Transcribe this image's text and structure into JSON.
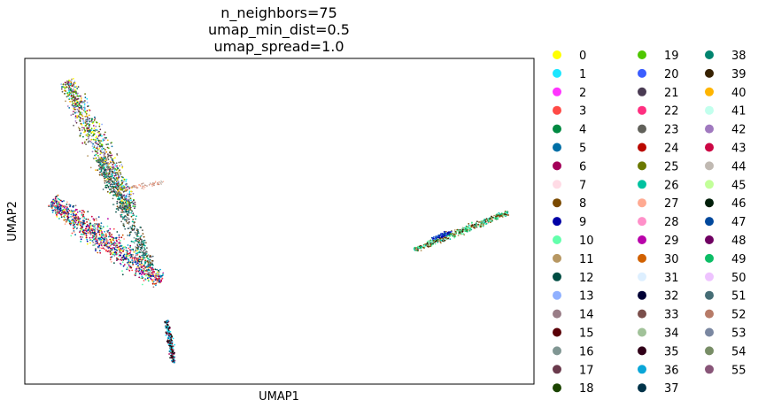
{
  "chart_data": {
    "type": "scatter",
    "title": [
      "n_neighbors=75",
      "umap_min_dist=0.5",
      "umap_spread=1.0"
    ],
    "xlabel": "UMAP1",
    "ylabel": "UMAP2",
    "xticks": [],
    "yticks": [],
    "grid": false,
    "legend": {
      "placement": "right-outside",
      "columns": 3,
      "entries": [
        {
          "label": "0",
          "color": "#ffff00"
        },
        {
          "label": "1",
          "color": "#1ce6ff"
        },
        {
          "label": "2",
          "color": "#ff34ff"
        },
        {
          "label": "3",
          "color": "#ff4a46"
        },
        {
          "label": "4",
          "color": "#008941"
        },
        {
          "label": "5",
          "color": "#006fa6"
        },
        {
          "label": "6",
          "color": "#a30059"
        },
        {
          "label": "7",
          "color": "#ffdbe5"
        },
        {
          "label": "8",
          "color": "#7a4900"
        },
        {
          "label": "9",
          "color": "#0000a6"
        },
        {
          "label": "10",
          "color": "#63ffac"
        },
        {
          "label": "11",
          "color": "#b79762"
        },
        {
          "label": "12",
          "color": "#004d43"
        },
        {
          "label": "13",
          "color": "#8fb0ff"
        },
        {
          "label": "14",
          "color": "#997d87"
        },
        {
          "label": "15",
          "color": "#5a0007"
        },
        {
          "label": "16",
          "color": "#809693"
        },
        {
          "label": "17",
          "color": "#6a3a4c"
        },
        {
          "label": "18",
          "color": "#1b4400"
        },
        {
          "label": "19",
          "color": "#4fc601"
        },
        {
          "label": "20",
          "color": "#3b5dff"
        },
        {
          "label": "21",
          "color": "#4a3b53"
        },
        {
          "label": "22",
          "color": "#ff2f80"
        },
        {
          "label": "23",
          "color": "#61615a"
        },
        {
          "label": "24",
          "color": "#ba0900"
        },
        {
          "label": "25",
          "color": "#6b7900"
        },
        {
          "label": "26",
          "color": "#00c2a0"
        },
        {
          "label": "27",
          "color": "#ffaa92"
        },
        {
          "label": "28",
          "color": "#ff90c9"
        },
        {
          "label": "29",
          "color": "#b903aa"
        },
        {
          "label": "30",
          "color": "#d16100"
        },
        {
          "label": "31",
          "color": "#ddefff"
        },
        {
          "label": "32",
          "color": "#000035"
        },
        {
          "label": "33",
          "color": "#7b4f4b"
        },
        {
          "label": "34",
          "color": "#a1c299"
        },
        {
          "label": "35",
          "color": "#300018"
        },
        {
          "label": "36",
          "color": "#0aa6d8"
        },
        {
          "label": "37",
          "color": "#013349"
        },
        {
          "label": "38",
          "color": "#00846f"
        },
        {
          "label": "39",
          "color": "#372101"
        },
        {
          "label": "40",
          "color": "#ffb500"
        },
        {
          "label": "41",
          "color": "#c2ffed"
        },
        {
          "label": "42",
          "color": "#a079bf"
        },
        {
          "label": "43",
          "color": "#cc0744"
        },
        {
          "label": "44",
          "color": "#c0b9b2"
        },
        {
          "label": "45",
          "color": "#c2ff99"
        },
        {
          "label": "46",
          "color": "#001e09"
        },
        {
          "label": "47",
          "color": "#00489c"
        },
        {
          "label": "48",
          "color": "#6f0062"
        },
        {
          "label": "49",
          "color": "#0cbd66"
        },
        {
          "label": "50",
          "color": "#eec3ff"
        },
        {
          "label": "51",
          "color": "#456d75"
        },
        {
          "label": "52",
          "color": "#b77b68"
        },
        {
          "label": "53",
          "color": "#7a87a1"
        },
        {
          "label": "54",
          "color": "#788d66"
        },
        {
          "label": "55",
          "color": "#885578"
        }
      ]
    }
  }
}
